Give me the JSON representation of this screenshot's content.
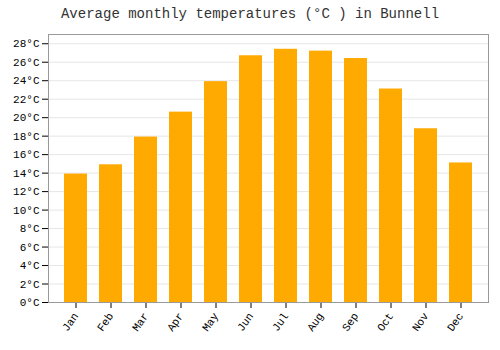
{
  "chart_data": {
    "type": "bar",
    "title": "Average monthly temperatures (°C ) in Bunnell",
    "categories": [
      "Jan",
      "Feb",
      "Mar",
      "Apr",
      "May",
      "Jun",
      "Jul",
      "Aug",
      "Sep",
      "Oct",
      "Nov",
      "Dec"
    ],
    "values": [
      13.9,
      14.9,
      17.9,
      20.6,
      23.9,
      26.7,
      27.4,
      27.2,
      26.4,
      23.1,
      18.8,
      15.1
    ],
    "color": "#FFAA00",
    "ylim": [
      0,
      29
    ],
    "yticks": [
      {
        "value": 0,
        "label": "0°C"
      },
      {
        "value": 2,
        "label": "2°C"
      },
      {
        "value": 4,
        "label": "4°C"
      },
      {
        "value": 6,
        "label": "6°C"
      },
      {
        "value": 8,
        "label": "8°C"
      },
      {
        "value": 10,
        "label": "10°C"
      },
      {
        "value": 12,
        "label": "12°C"
      },
      {
        "value": 14,
        "label": "14°C"
      },
      {
        "value": 16,
        "label": "16°C"
      },
      {
        "value": 18,
        "label": "18°C"
      },
      {
        "value": 20,
        "label": "20°C"
      },
      {
        "value": 22,
        "label": "22°C"
      },
      {
        "value": 24,
        "label": "24°C"
      },
      {
        "value": 26,
        "label": "26°C"
      },
      {
        "value": 28,
        "label": "28°C"
      }
    ],
    "grid": true
  }
}
